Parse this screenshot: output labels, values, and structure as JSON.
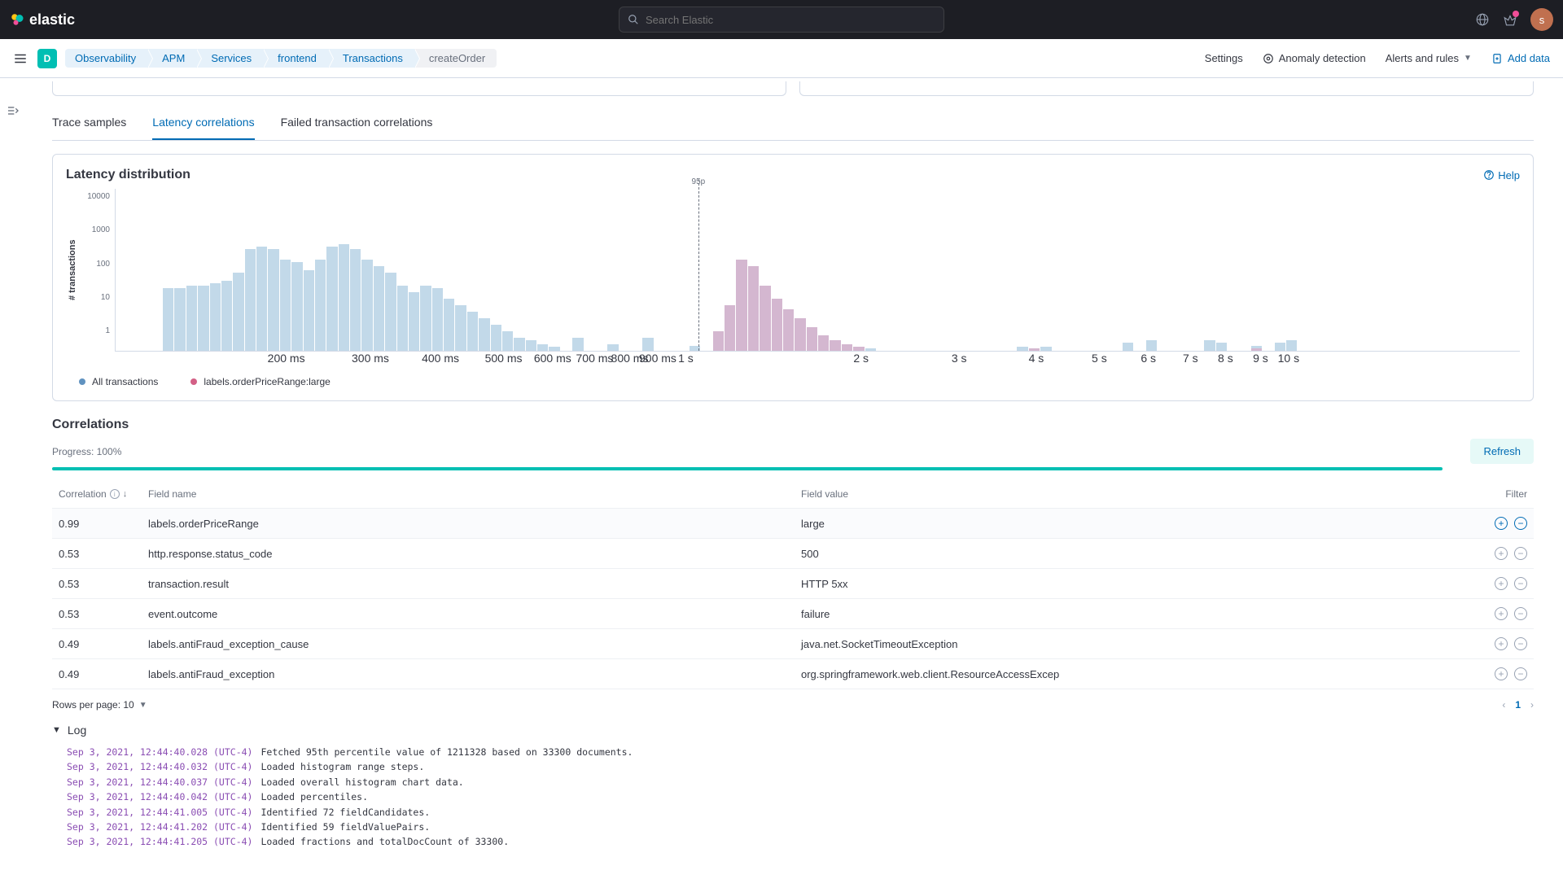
{
  "header": {
    "brand": "elastic",
    "search_placeholder": "Search Elastic",
    "avatar_initial": "s"
  },
  "breadcrumbs": {
    "space": "D",
    "items": [
      "Observability",
      "APM",
      "Services",
      "frontend",
      "Transactions",
      "createOrder"
    ]
  },
  "subheader_links": {
    "settings": "Settings",
    "anomaly": "Anomaly detection",
    "alerts": "Alerts and rules",
    "add_data": "Add data"
  },
  "tabs": {
    "trace": "Trace samples",
    "latency": "Latency correlations",
    "failed": "Failed transaction correlations"
  },
  "chart": {
    "title": "Latency distribution",
    "help": "Help",
    "y_label": "# transactions",
    "p95_label": "95p",
    "p95_position_pct": 41.5,
    "y_ticks": [
      "10000",
      "1000",
      "100",
      "10",
      "1"
    ],
    "x_ticks": [
      {
        "label": "200 ms",
        "pct": 12
      },
      {
        "label": "300 ms",
        "pct": 18
      },
      {
        "label": "400 ms",
        "pct": 23
      },
      {
        "label": "500 ms",
        "pct": 27.5
      },
      {
        "label": "600 ms",
        "pct": 31
      },
      {
        "label": "700 ms",
        "pct": 34
      },
      {
        "label": "800 ms",
        "pct": 36.5
      },
      {
        "label": "900 ms",
        "pct": 38.5
      },
      {
        "label": "1 s",
        "pct": 40.5
      },
      {
        "label": "2 s",
        "pct": 53
      },
      {
        "label": "3 s",
        "pct": 60
      },
      {
        "label": "4 s",
        "pct": 65.5
      },
      {
        "label": "5 s",
        "pct": 70
      },
      {
        "label": "6 s",
        "pct": 73.5
      },
      {
        "label": "7 s",
        "pct": 76.5
      },
      {
        "label": "8 s",
        "pct": 79
      },
      {
        "label": "9 s",
        "pct": 81.5
      },
      {
        "label": "10 s",
        "pct": 83.5
      }
    ],
    "num_bars": 120,
    "series1_color": "#b7d2e5",
    "series2_color": "#d6b3cd",
    "series1_heights": [
      0,
      0,
      0,
      0,
      48,
      48,
      50,
      50,
      52,
      54,
      60,
      78,
      80,
      78,
      70,
      68,
      62,
      70,
      80,
      82,
      78,
      70,
      65,
      60,
      50,
      45,
      50,
      48,
      40,
      35,
      30,
      25,
      20,
      15,
      10,
      8,
      5,
      3,
      0,
      10,
      0,
      0,
      5,
      0,
      0,
      10,
      0,
      0,
      0,
      4,
      0,
      15,
      35,
      70,
      65,
      50,
      40,
      32,
      25,
      18,
      12,
      8,
      5,
      3,
      2,
      0,
      0,
      0,
      0,
      0,
      0,
      0,
      0,
      0,
      0,
      0,
      0,
      3,
      2,
      3,
      0,
      0,
      0,
      0,
      0,
      0,
      6,
      0,
      8,
      0,
      0,
      0,
      0,
      8,
      6,
      0,
      0,
      4,
      0,
      6,
      8,
      0,
      0,
      0,
      0,
      0,
      0,
      0,
      0,
      0,
      0,
      0,
      0,
      0,
      0,
      0,
      0,
      0,
      0,
      0
    ],
    "series2_heights": [
      0,
      0,
      0,
      0,
      0,
      0,
      0,
      0,
      0,
      0,
      0,
      0,
      0,
      0,
      0,
      0,
      0,
      0,
      0,
      0,
      0,
      0,
      0,
      0,
      0,
      0,
      0,
      0,
      0,
      0,
      0,
      0,
      0,
      0,
      0,
      0,
      0,
      0,
      0,
      0,
      0,
      0,
      0,
      0,
      0,
      0,
      0,
      0,
      0,
      0,
      0,
      15,
      35,
      70,
      65,
      50,
      40,
      32,
      25,
      18,
      12,
      8,
      5,
      3,
      0,
      0,
      0,
      0,
      0,
      0,
      0,
      0,
      0,
      0,
      0,
      0,
      0,
      0,
      2,
      0,
      0,
      0,
      0,
      0,
      0,
      0,
      0,
      0,
      0,
      0,
      0,
      0,
      0,
      0,
      0,
      0,
      0,
      2,
      0,
      0,
      0,
      0,
      0,
      0,
      0,
      0,
      0,
      0,
      0,
      0,
      0,
      0,
      0,
      0,
      0,
      0,
      0,
      0,
      0,
      0
    ],
    "legend": {
      "s1": "All transactions",
      "s2": "labels.orderPriceRange:large"
    }
  },
  "correlations": {
    "title": "Correlations",
    "progress_label": "Progress: 100%",
    "refresh": "Refresh",
    "columns": {
      "corr": "Correlation",
      "name": "Field name",
      "value": "Field value",
      "filter": "Filter"
    },
    "rows": [
      {
        "corr": "0.99",
        "name": "labels.orderPriceRange",
        "value": "large",
        "selected": true
      },
      {
        "corr": "0.53",
        "name": "http.response.status_code",
        "value": "500"
      },
      {
        "corr": "0.53",
        "name": "transaction.result",
        "value": "HTTP 5xx"
      },
      {
        "corr": "0.53",
        "name": "event.outcome",
        "value": "failure"
      },
      {
        "corr": "0.49",
        "name": "labels.antiFraud_exception_cause",
        "value": "java.net.SocketTimeoutException"
      },
      {
        "corr": "0.49",
        "name": "labels.antiFraud_exception",
        "value": "org.springframework.web.client.ResourceAccessExcep"
      }
    ]
  },
  "pagination": {
    "rpp_label": "Rows per page: 10",
    "current": "1"
  },
  "log": {
    "title": "Log",
    "lines": [
      {
        "ts": "Sep 3, 2021, 12:44:40.028 (UTC-4)",
        "msg": "Fetched 95th percentile value of 1211328 based on 33300 documents."
      },
      {
        "ts": "Sep 3, 2021, 12:44:40.032 (UTC-4)",
        "msg": "Loaded histogram range steps."
      },
      {
        "ts": "Sep 3, 2021, 12:44:40.037 (UTC-4)",
        "msg": "Loaded overall histogram chart data."
      },
      {
        "ts": "Sep 3, 2021, 12:44:40.042 (UTC-4)",
        "msg": "Loaded percentiles."
      },
      {
        "ts": "Sep 3, 2021, 12:44:41.005 (UTC-4)",
        "msg": "Identified 72 fieldCandidates."
      },
      {
        "ts": "Sep 3, 2021, 12:44:41.202 (UTC-4)",
        "msg": "Identified 59 fieldValuePairs."
      },
      {
        "ts": "Sep 3, 2021, 12:44:41.205 (UTC-4)",
        "msg": "Loaded fractions and totalDocCount of 33300."
      }
    ]
  }
}
